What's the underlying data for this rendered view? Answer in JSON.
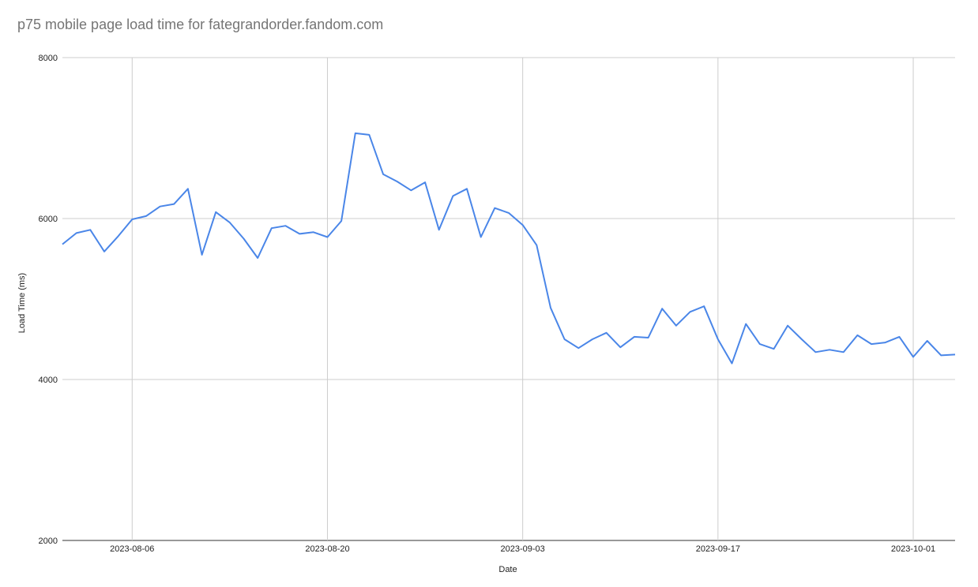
{
  "chart_data": {
    "type": "line",
    "title": "p75 mobile page load time for fategrandorder.fandom.com",
    "xlabel": "Date",
    "ylabel": "Load Time (ms)",
    "ylim": [
      2000,
      8000
    ],
    "yticks": [
      2000,
      4000,
      6000,
      8000
    ],
    "xlim": [
      "2023-08-01",
      "2023-10-04"
    ],
    "xticks": [
      "2023-08-06",
      "2023-08-20",
      "2023-09-03",
      "2023-09-17",
      "2023-10-01"
    ],
    "grid": true,
    "legend": "none",
    "line_color": "#4a86e8",
    "series": [
      {
        "x": [
          "2023-08-01",
          "2023-08-02",
          "2023-08-03",
          "2023-08-04",
          "2023-08-05",
          "2023-08-06",
          "2023-08-07",
          "2023-08-08",
          "2023-08-09",
          "2023-08-10",
          "2023-08-11",
          "2023-08-12",
          "2023-08-13",
          "2023-08-14",
          "2023-08-15",
          "2023-08-16",
          "2023-08-17",
          "2023-08-18",
          "2023-08-19",
          "2023-08-20",
          "2023-08-21",
          "2023-08-22",
          "2023-08-23",
          "2023-08-24",
          "2023-08-25",
          "2023-08-26",
          "2023-08-27",
          "2023-08-28",
          "2023-08-29",
          "2023-08-30",
          "2023-08-31",
          "2023-09-01",
          "2023-09-02",
          "2023-09-03",
          "2023-09-04",
          "2023-09-05",
          "2023-09-06",
          "2023-09-07",
          "2023-09-08",
          "2023-09-09",
          "2023-09-10",
          "2023-09-11",
          "2023-09-12",
          "2023-09-13",
          "2023-09-14",
          "2023-09-15",
          "2023-09-16",
          "2023-09-17",
          "2023-09-18",
          "2023-09-19",
          "2023-09-20",
          "2023-09-21",
          "2023-09-22",
          "2023-09-23",
          "2023-09-24",
          "2023-09-25",
          "2023-09-26",
          "2023-09-27",
          "2023-09-28",
          "2023-09-29",
          "2023-09-30",
          "2023-10-01",
          "2023-10-02",
          "2023-10-03",
          "2023-10-04"
        ],
        "values": [
          5680,
          5820,
          5860,
          5590,
          5780,
          5990,
          6030,
          6150,
          6180,
          6370,
          5550,
          6080,
          5950,
          5750,
          5510,
          5880,
          5910,
          5810,
          5830,
          5770,
          5970,
          7060,
          7040,
          6550,
          6460,
          6350,
          6450,
          5860,
          6280,
          6370,
          5770,
          6130,
          6070,
          5920,
          5670,
          4890,
          4500,
          4390,
          4500,
          4580,
          4400,
          4530,
          4520,
          4880,
          4670,
          4840,
          4910,
          4500,
          4200,
          4690,
          4440,
          4380,
          4670,
          4500,
          4340,
          4370,
          4340,
          4550,
          4440,
          4460,
          4530,
          4280,
          4480,
          4300,
          4310
        ]
      }
    ]
  }
}
